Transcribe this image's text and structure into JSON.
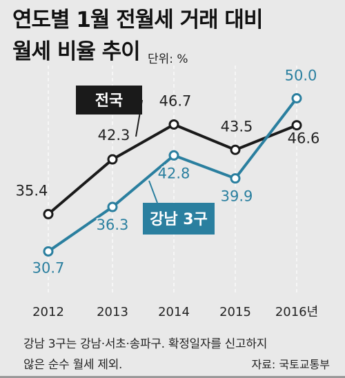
{
  "title_lines": [
    "연도별 1월 전월세 거래 대비",
    "월세 비율 추이"
  ],
  "unit": "단위: %",
  "note_lines": [
    "강남 3구는 강남·서초·송파구. 확정일자를 신고하지",
    "않은 순수 월세 제외."
  ],
  "source": "자료: 국토교통부",
  "colors": {
    "background": "#e9e9e9",
    "nationwide": "#1a1a1a",
    "gangnam": "#2a7f9f",
    "grid": "#ffffff"
  },
  "chart_data": {
    "type": "line",
    "categories": [
      "2012",
      "2013",
      "2014",
      "2015",
      "2016년"
    ],
    "ylim": [
      25,
      55
    ],
    "grid": "vertical-dashed",
    "series": [
      {
        "name": "전국",
        "values": [
          35.4,
          42.3,
          46.7,
          43.5,
          46.6
        ],
        "value_labels": [
          "35.4",
          "42.3",
          "46.7",
          "43.5",
          "46.6"
        ],
        "color": "#1a1a1a"
      },
      {
        "name": "강남 3구",
        "values": [
          30.7,
          36.3,
          42.8,
          39.9,
          50.0
        ],
        "value_labels": [
          "30.7",
          "36.3",
          "42.8",
          "39.9",
          "50.0"
        ],
        "color": "#2a7f9f"
      }
    ]
  }
}
